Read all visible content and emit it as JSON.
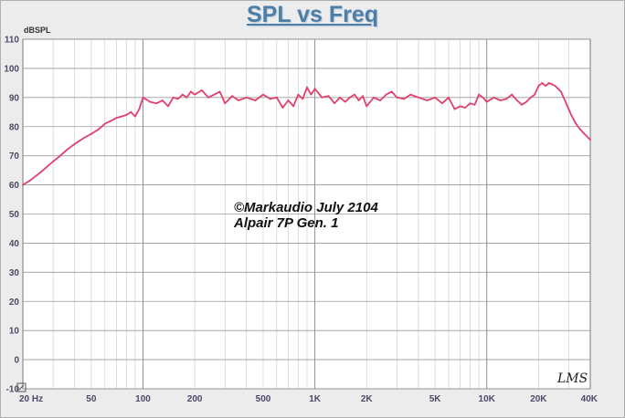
{
  "chart_data": {
    "type": "line",
    "title": "SPL vs Freq",
    "ylabel": "dBSPL",
    "xlabel": "",
    "xscale": "log",
    "xlim": [
      20,
      40000
    ],
    "ylim": [
      -10,
      110
    ],
    "yticks": [
      -10,
      0,
      10,
      20,
      30,
      40,
      50,
      60,
      70,
      80,
      90,
      100,
      110
    ],
    "ytick_labels": [
      "-10",
      "0",
      "10",
      "20",
      "30",
      "40",
      "50",
      "60",
      "70",
      "80",
      "90",
      "100",
      "110"
    ],
    "xticks": [
      20,
      50,
      100,
      200,
      500,
      1000,
      2000,
      5000,
      10000,
      20000,
      40000
    ],
    "xtick_labels": [
      "20 Hz",
      "50",
      "100",
      "200",
      "500",
      "1K",
      "2K",
      "5K",
      "10K",
      "20K",
      "40K"
    ],
    "grid": true,
    "line_color": "#e0406e",
    "annotations": [
      "©Markaudio July 2104",
      "Alpair 7P Gen. 1"
    ],
    "logo_text": "LMS",
    "series": [
      {
        "x": [
          20,
          22,
          25,
          28,
          30,
          33,
          36,
          40,
          45,
          50,
          55,
          60,
          65,
          70,
          75,
          80,
          85,
          90,
          95,
          100,
          110,
          120,
          130,
          140,
          150,
          160,
          170,
          180,
          190,
          200,
          220,
          240,
          260,
          280,
          300,
          330,
          360,
          400,
          450,
          500,
          550,
          600,
          650,
          700,
          750,
          800,
          850,
          900,
          950,
          1000,
          1100,
          1200,
          1300,
          1400,
          1500,
          1600,
          1700,
          1800,
          1900,
          2000,
          2200,
          2400,
          2600,
          2800,
          3000,
          3300,
          3600,
          4000,
          4500,
          5000,
          5500,
          6000,
          6500,
          7000,
          7500,
          8000,
          8500,
          9000,
          9500,
          10000,
          11000,
          12000,
          13000,
          14000,
          15000,
          16000,
          17000,
          18000,
          19000,
          20000,
          21000,
          22000,
          23000,
          24000,
          25000,
          27000,
          29000,
          31000,
          33000,
          35000,
          37000,
          40000
        ],
        "y": [
          60,
          61.5,
          64,
          66.5,
          68,
          70,
          72,
          74,
          76,
          77.5,
          79,
          81,
          82,
          83,
          83.5,
          84,
          85,
          83.5,
          86,
          90,
          88.5,
          88,
          89,
          87,
          90,
          89.5,
          91,
          90,
          92,
          91,
          92.5,
          90,
          91,
          92,
          88,
          90.5,
          89,
          90,
          89,
          91,
          89.5,
          90,
          86.5,
          89,
          87,
          91,
          89.5,
          93.5,
          91,
          93,
          90,
          90.5,
          88,
          90,
          88.5,
          90,
          91,
          89,
          90.5,
          87,
          90,
          89,
          91,
          92,
          90,
          89.5,
          91,
          90,
          89,
          90,
          88,
          90,
          86,
          87,
          86.5,
          88,
          87.5,
          91,
          90,
          88.5,
          90,
          89,
          89.5,
          91,
          89,
          87.5,
          88.5,
          90,
          91,
          94,
          95,
          94,
          95,
          94.5,
          94,
          92,
          88,
          84,
          81,
          79,
          77.5,
          75.5
        ]
      }
    ]
  }
}
